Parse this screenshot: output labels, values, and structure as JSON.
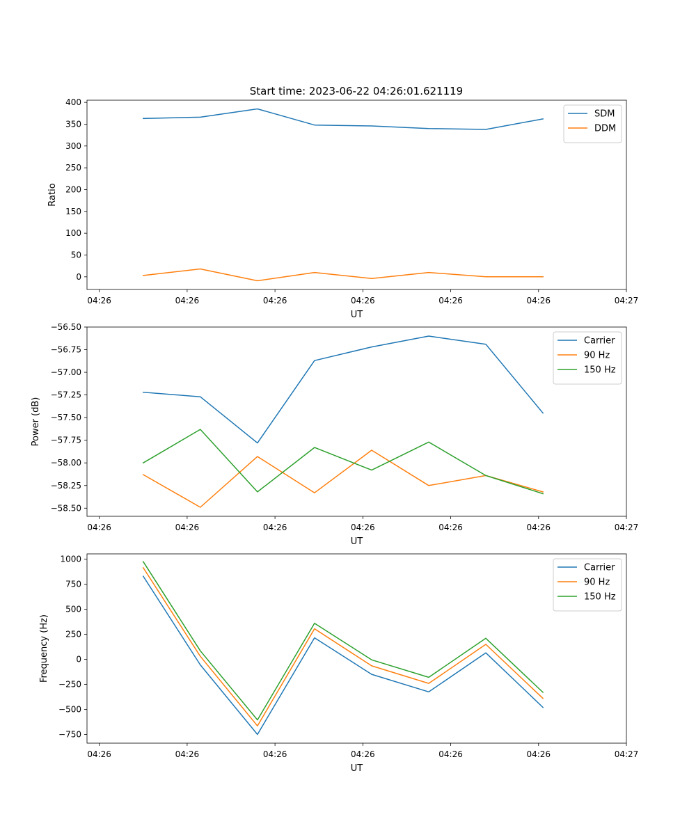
{
  "figure": {
    "title": "Start time: 2023-06-22 04:26:01.621119"
  },
  "chart_data": [
    {
      "type": "line",
      "xlabel": "UT",
      "ylabel": "Ratio",
      "x_ticks": [
        "04:26",
        "04:26",
        "04:26",
        "04:26",
        "04:26",
        "04:26",
        "04:27"
      ],
      "x_tick_values": [
        0,
        1,
        2,
        3,
        4,
        5,
        6
      ],
      "xlim": [
        -0.14,
        6.0
      ],
      "ylim": [
        -29,
        405
      ],
      "y_ticks": [
        0,
        50,
        100,
        150,
        200,
        250,
        300,
        350,
        400
      ],
      "y_tick_labels": [
        "0",
        "50",
        "100",
        "150",
        "200",
        "250",
        "300",
        "350",
        "400"
      ],
      "legend_position": "top-right",
      "grid": false,
      "x": [
        0.5,
        1.15,
        1.8,
        2.45,
        3.1,
        3.75,
        4.4,
        5.05
      ],
      "series": [
        {
          "name": "SDM",
          "color": "#1f77b4",
          "values": [
            363,
            366,
            385,
            348,
            346,
            340,
            338,
            362
          ]
        },
        {
          "name": "DDM",
          "color": "#ff7f0e",
          "values": [
            3,
            18,
            -9,
            10,
            -4,
            10,
            0,
            0
          ]
        }
      ]
    },
    {
      "type": "line",
      "xlabel": "UT",
      "ylabel": "Power (dB)",
      "x_ticks": [
        "04:26",
        "04:26",
        "04:26",
        "04:26",
        "04:26",
        "04:26",
        "04:27"
      ],
      "x_tick_values": [
        0,
        1,
        2,
        3,
        4,
        5,
        6
      ],
      "xlim": [
        -0.14,
        6.0
      ],
      "ylim": [
        -58.59,
        -56.5
      ],
      "y_ticks": [
        -56.5,
        -56.75,
        -57.0,
        -57.25,
        -57.5,
        -57.75,
        -58.0,
        -58.25,
        -58.5
      ],
      "y_tick_labels": [
        "−56.50",
        "−56.75",
        "−57.00",
        "−57.25",
        "−57.50",
        "−57.75",
        "−58.00",
        "−58.25",
        "−58.50"
      ],
      "legend_position": "top-right",
      "grid": false,
      "x": [
        0.5,
        1.15,
        1.8,
        2.45,
        3.1,
        3.75,
        4.4,
        5.05
      ],
      "series": [
        {
          "name": "Carrier",
          "color": "#1f77b4",
          "values": [
            -57.22,
            -57.27,
            -57.78,
            -56.87,
            -56.72,
            -56.6,
            -56.69,
            -57.45
          ]
        },
        {
          "name": "90 Hz",
          "color": "#ff7f0e",
          "values": [
            -58.13,
            -58.49,
            -57.93,
            -58.33,
            -57.86,
            -58.25,
            -58.14,
            -58.32
          ]
        },
        {
          "name": "150 Hz",
          "color": "#2ca02c",
          "values": [
            -58.0,
            -57.63,
            -58.32,
            -57.83,
            -58.08,
            -57.77,
            -58.14,
            -58.34
          ]
        }
      ]
    },
    {
      "type": "line",
      "xlabel": "UT",
      "ylabel": "Frequency (Hz)",
      "x_ticks": [
        "04:26",
        "04:26",
        "04:26",
        "04:26",
        "04:26",
        "04:26",
        "04:27"
      ],
      "x_tick_values": [
        0,
        1,
        2,
        3,
        4,
        5,
        6
      ],
      "xlim": [
        -0.14,
        6.0
      ],
      "ylim": [
        -837,
        1053
      ],
      "y_ticks": [
        1000,
        750,
        500,
        250,
        0,
        -250,
        -500,
        -750
      ],
      "y_tick_labels": [
        "1000",
        "750",
        "500",
        "250",
        "0",
        "−250",
        "−500",
        "−750"
      ],
      "legend_position": "top-right",
      "grid": false,
      "x": [
        0.5,
        1.15,
        1.8,
        2.45,
        3.1,
        3.75,
        4.4,
        5.05
      ],
      "series": [
        {
          "name": "Carrier",
          "color": "#1f77b4",
          "values": [
            830,
            -55,
            -750,
            215,
            -150,
            -325,
            65,
            -480
          ]
        },
        {
          "name": "90 Hz",
          "color": "#ff7f0e",
          "values": [
            915,
            30,
            -665,
            305,
            -65,
            -240,
            150,
            -390
          ]
        },
        {
          "name": "150 Hz",
          "color": "#2ca02c",
          "values": [
            975,
            85,
            -605,
            360,
            -5,
            -180,
            210,
            -330
          ]
        }
      ]
    }
  ]
}
